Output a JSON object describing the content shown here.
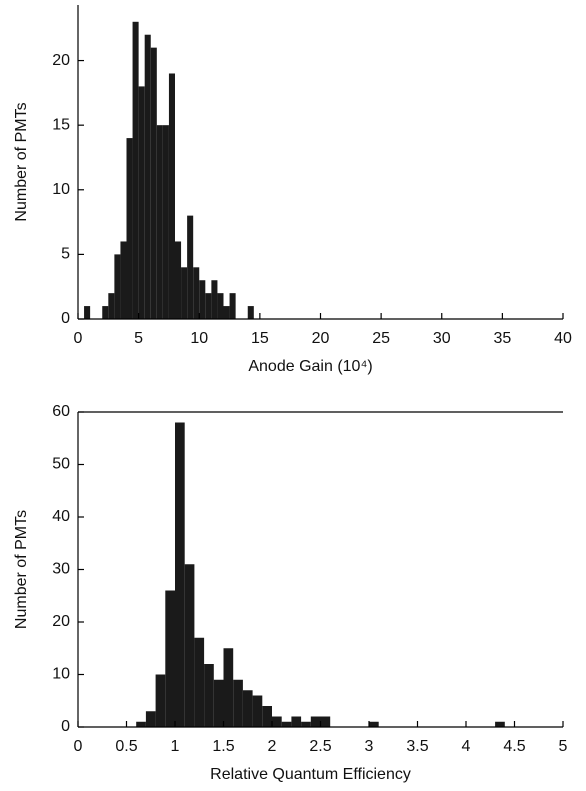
{
  "chart_data": [
    {
      "type": "histogram",
      "xlabel": "Anode Gain (10⁴)",
      "ylabel": "Number of PMTs",
      "color": "#1a1a1a",
      "bins": [
        0.5,
        1,
        1.5,
        2,
        2.5,
        3,
        3.5,
        4,
        4.5,
        5,
        5.5,
        6,
        6.5,
        7,
        7.5,
        8,
        8.5,
        9,
        9.5,
        10,
        10.5,
        11,
        11.5,
        12,
        12.5,
        13,
        13.5,
        14,
        14.5
      ],
      "values": [
        1,
        0,
        0,
        1,
        2,
        5,
        6,
        14,
        23,
        18,
        22,
        21,
        15,
        15,
        19,
        6,
        4,
        8,
        4,
        3,
        2,
        3,
        2,
        1,
        2,
        0,
        0,
        1
      ],
      "xlim": [
        0,
        40
      ],
      "xticks": [
        0,
        5,
        10,
        15,
        20,
        25,
        30,
        35,
        40
      ],
      "ylim": [
        0,
        24.3
      ],
      "yticks": [
        0,
        5,
        10,
        15,
        20
      ]
    },
    {
      "type": "histogram",
      "xlabel": "Relative Quantum Efficiency",
      "ylabel": "Number of PMTs",
      "color": "#1a1a1a",
      "bins": [
        0.6,
        0.7,
        0.8,
        0.9,
        1.0,
        1.1,
        1.2,
        1.3,
        1.4,
        1.5,
        1.6,
        1.7,
        1.8,
        1.9,
        2.0,
        2.1,
        2.2,
        2.3,
        2.4,
        2.5,
        2.6,
        2.7,
        2.8,
        2.9,
        3.0,
        3.1,
        3.2,
        3.3,
        3.4,
        3.5,
        3.6,
        3.7,
        3.8,
        3.9,
        4.0,
        4.1,
        4.2,
        4.3,
        4.4
      ],
      "values": [
        1,
        3,
        10,
        26,
        58,
        31,
        17,
        12,
        9,
        15,
        9,
        7,
        6,
        4,
        2,
        1,
        2,
        1,
        2,
        2,
        0,
        0,
        0,
        0,
        1,
        0,
        0,
        0,
        0,
        0,
        0,
        0,
        0,
        0,
        0,
        0,
        0,
        1
      ],
      "xlim": [
        0,
        5
      ],
      "xticks": [
        0,
        0.5,
        1,
        1.5,
        2,
        2.5,
        3,
        3.5,
        4,
        4.5,
        5
      ],
      "ylim": [
        0,
        60
      ],
      "yticks": [
        0,
        10,
        20,
        30,
        40,
        50,
        60
      ]
    }
  ]
}
